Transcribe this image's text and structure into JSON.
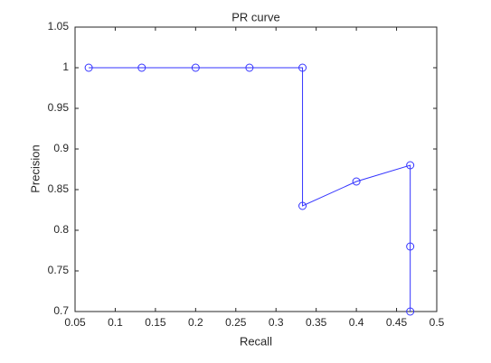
{
  "chart_data": {
    "type": "line",
    "title": "PR curve",
    "x_label": "Recall",
    "y_label": "Precision",
    "x": [
      0.067,
      0.133,
      0.2,
      0.267,
      0.333,
      0.333,
      0.4,
      0.467,
      0.467,
      0.467
    ],
    "series": [
      {
        "color": "#3333ff",
        "marker": "circle",
        "values": [
          1,
          1,
          1,
          1,
          1,
          0.83,
          0.86,
          0.88,
          0.78,
          0.7
        ]
      }
    ],
    "xlim": [
      0.05,
      0.5
    ],
    "xticks": [
      0.05,
      0.1,
      0.15,
      0.2,
      0.25,
      0.3,
      0.35,
      0.4,
      0.45,
      0.5
    ],
    "ylim": [
      0.7,
      1.05
    ],
    "yticks": [
      0.7,
      0.75,
      0.8,
      0.85,
      0.9,
      0.95,
      1,
      1.05
    ],
    "grid": false
  }
}
